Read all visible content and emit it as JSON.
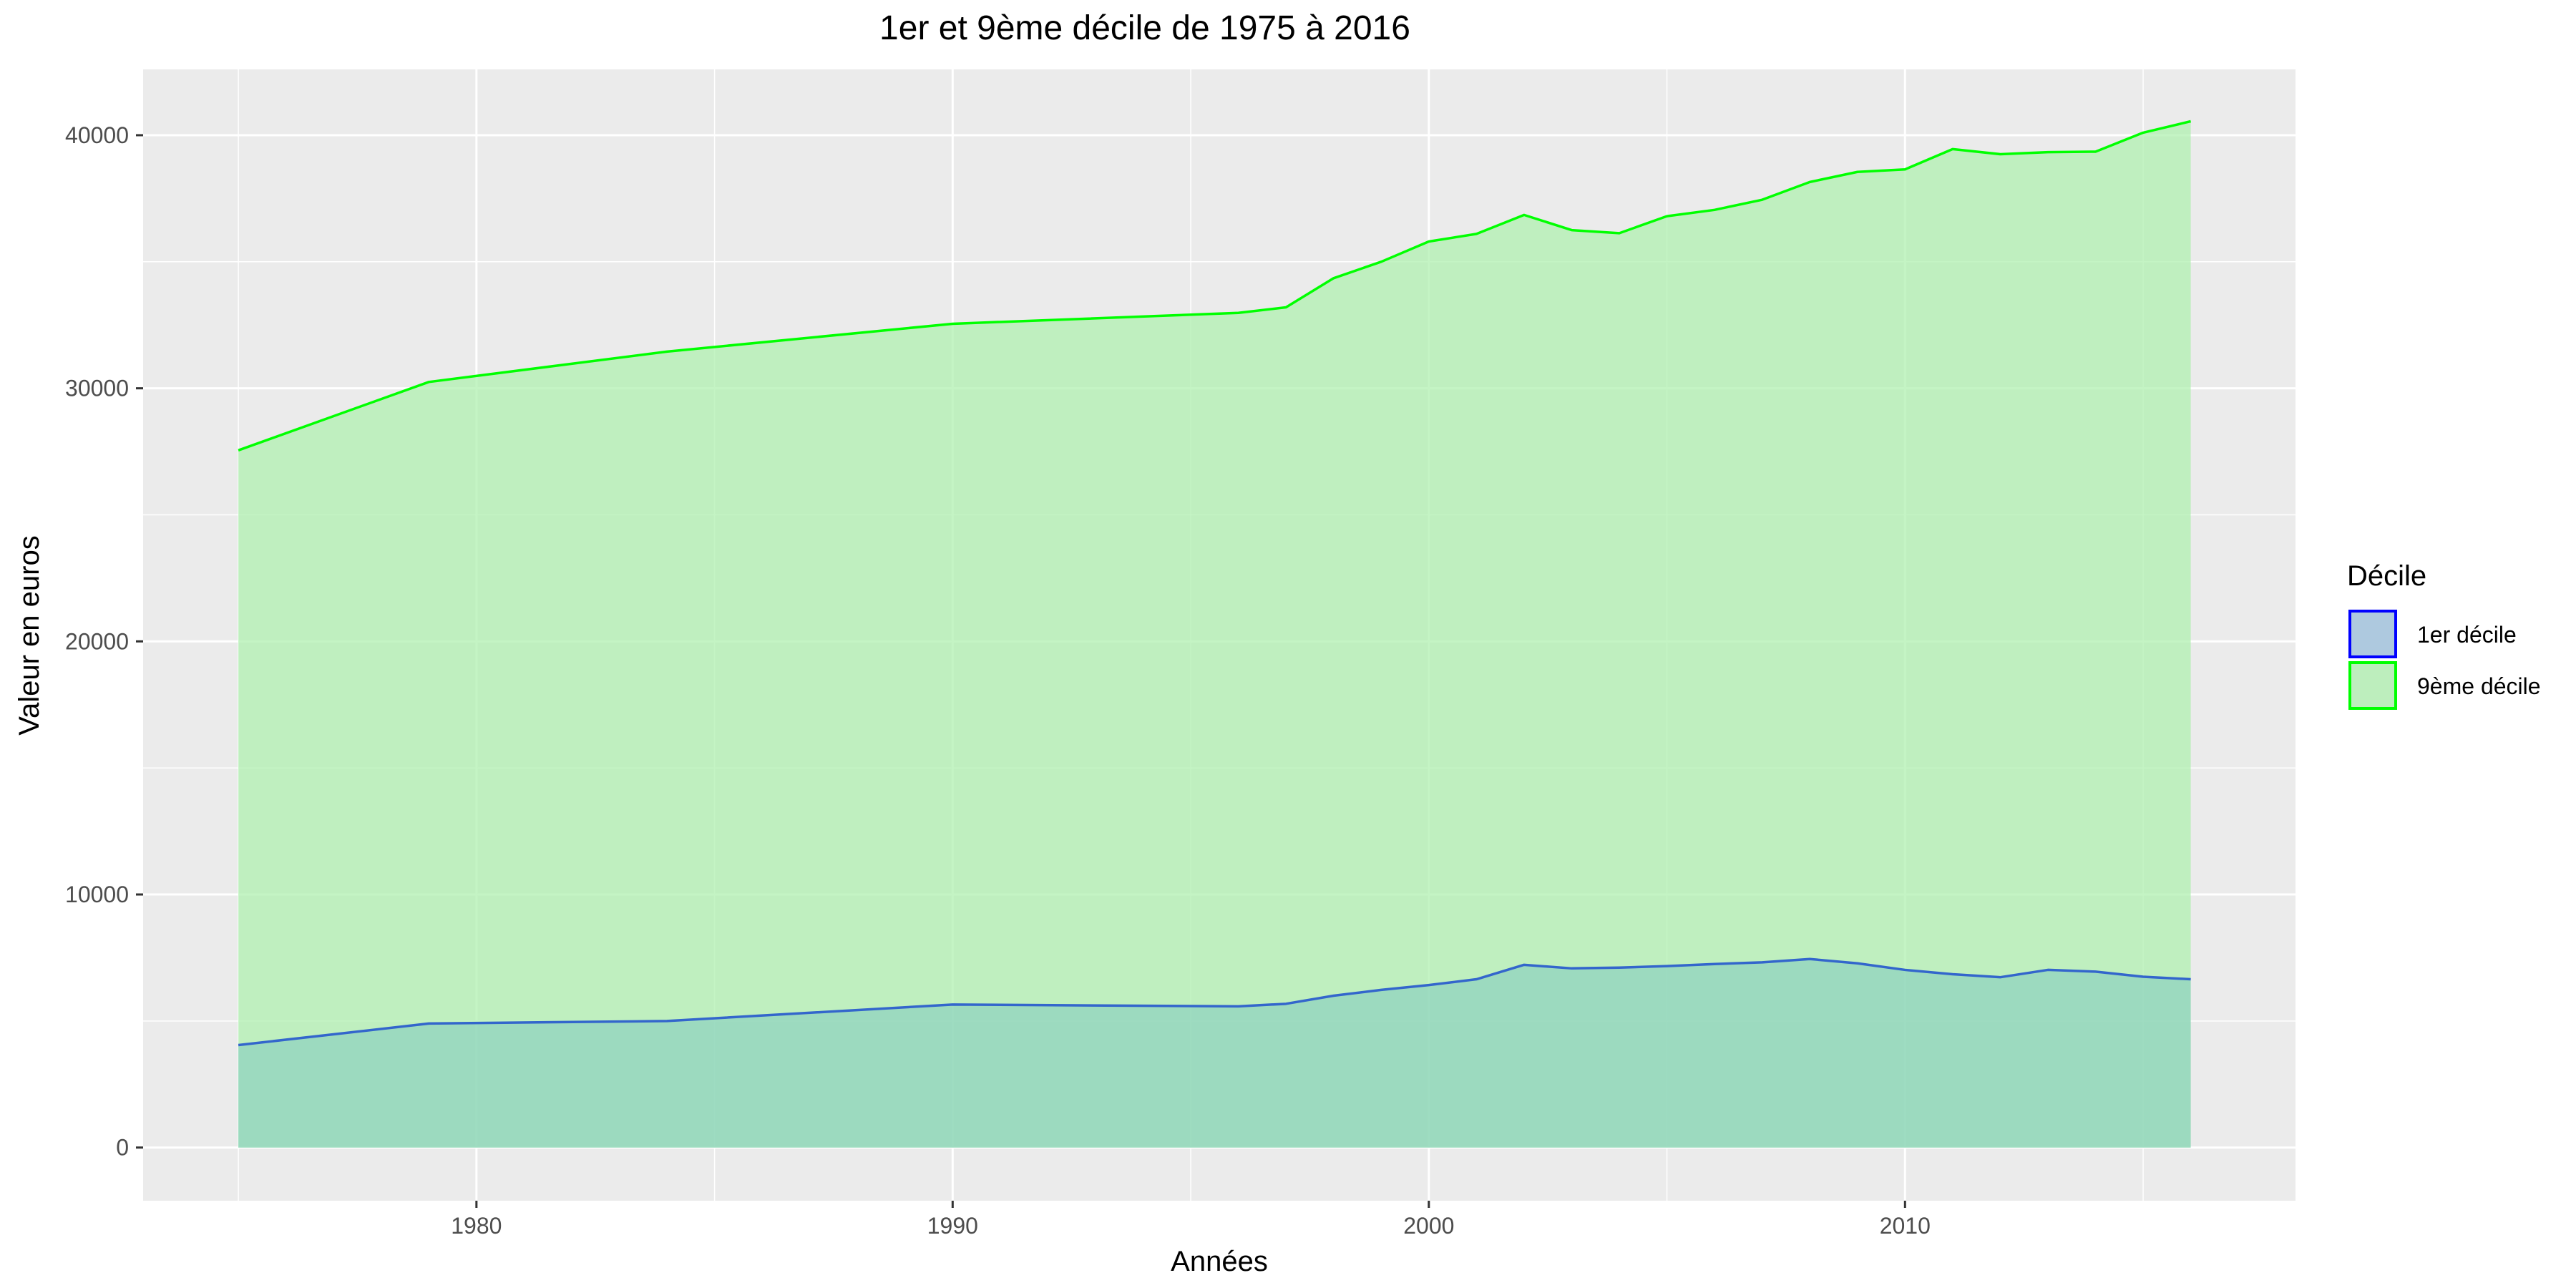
{
  "chart_data": {
    "type": "area",
    "title": "1er et 9ème décile de 1975 à 2016",
    "xlabel": "Années",
    "ylabel": "Valeur en euros",
    "xlim": [
      1973,
      2018.2
    ],
    "ylim": [
      -2100,
      42600
    ],
    "x_ticks": [
      1980,
      1990,
      2000,
      2010
    ],
    "x_minor_ticks": [
      1975,
      1985,
      1995,
      2005,
      2015
    ],
    "y_ticks": [
      0,
      10000,
      20000,
      30000,
      40000
    ],
    "y_minor_ticks": [
      5000,
      15000,
      25000,
      35000
    ],
    "grid": true,
    "background": "#ebebeb",
    "legend": {
      "title": "Décile",
      "position": "right"
    },
    "series": [
      {
        "name": "9ème décile",
        "line_color": "#00ff00",
        "fill_color": "#b0f0b0",
        "fill_opacity": 0.75,
        "x": [
          1975,
          1979,
          1984,
          1990,
          1996,
          1997,
          1998,
          1999,
          2000,
          2001,
          2002,
          2003,
          2004,
          2005,
          2006,
          2007,
          2008,
          2009,
          2010,
          2011,
          2012,
          2013,
          2014,
          2015,
          2016
        ],
        "values": [
          27550,
          30250,
          31450,
          32550,
          32980,
          33200,
          34350,
          35000,
          35800,
          36100,
          36850,
          36250,
          36130,
          36800,
          37050,
          37450,
          38150,
          38550,
          38650,
          39450,
          39250,
          39330,
          39350,
          40100,
          40550
        ]
      },
      {
        "name": "1er décile",
        "line_color": "#3366cc",
        "fill_color": "#80c8c0",
        "fill_opacity": 0.55,
        "x": [
          1975,
          1979,
          1984,
          1990,
          1996,
          1997,
          1998,
          1999,
          2000,
          2001,
          2002,
          2003,
          2004,
          2005,
          2006,
          2007,
          2008,
          2009,
          2010,
          2011,
          2012,
          2013,
          2014,
          2015,
          2016
        ],
        "values": [
          4050,
          4900,
          5000,
          5650,
          5580,
          5680,
          6000,
          6230,
          6420,
          6650,
          7220,
          7080,
          7110,
          7170,
          7250,
          7320,
          7450,
          7280,
          7020,
          6850,
          6730,
          7020,
          6950,
          6750,
          6650
        ]
      }
    ],
    "legend_items": [
      {
        "label": "1er décile",
        "swatch_fill": "#aec9df",
        "swatch_border": "#0000ff"
      },
      {
        "label": "9ème décile",
        "swatch_fill": "#bdeebd",
        "swatch_border": "#00ff00"
      }
    ]
  }
}
